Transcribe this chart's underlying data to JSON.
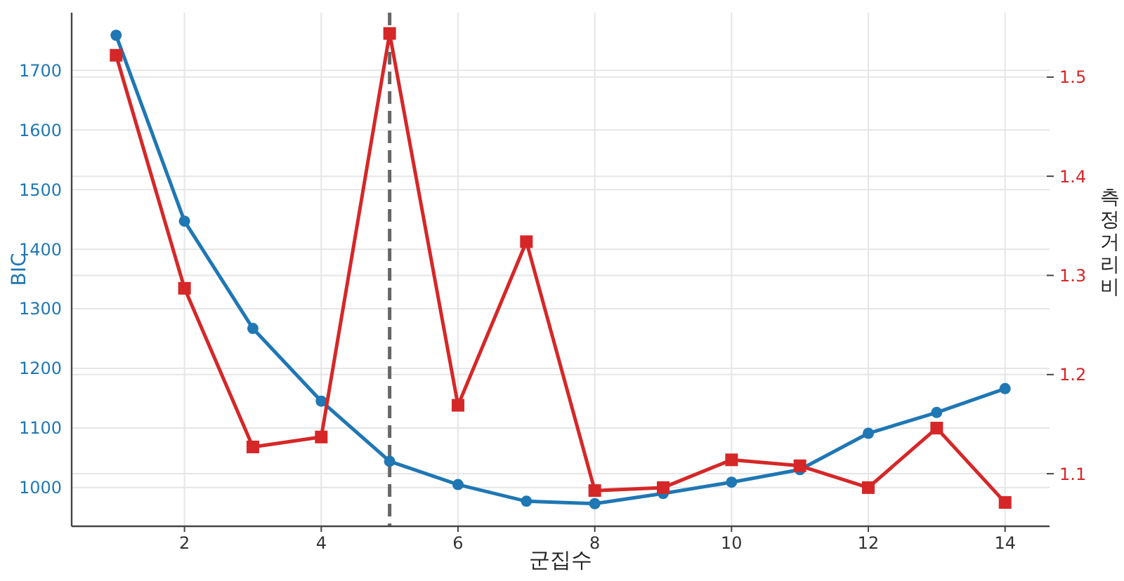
{
  "chart_data": {
    "type": "line",
    "xlabel": "군집수",
    "ylabel": "BIC",
    "y2label": "측정거리비",
    "x": [
      1,
      2,
      3,
      4,
      5,
      6,
      7,
      8,
      9,
      10,
      11,
      12,
      13,
      14
    ],
    "series": [
      {
        "color": "#1f77b4",
        "marker": "circle",
        "values": [
          1759,
          1447,
          1267,
          1145,
          1044,
          1005,
          977,
          973,
          990,
          1009,
          1030,
          1091,
          1126,
          1166
        ]
      },
      {
        "color": "#d62728",
        "marker": "square",
        "axis": "y2",
        "values": [
          1.522,
          1.287,
          1.127,
          1.137,
          1.544,
          1.169,
          1.334,
          1.083,
          1.086,
          1.114,
          1.108,
          1.086,
          1.146,
          1.071
        ]
      }
    ],
    "xlim": [
      0.35,
      14.65
    ],
    "xticks": [
      2,
      4,
      6,
      8,
      10,
      12,
      14
    ],
    "ylim": [
      935,
      1797
    ],
    "yticks": [
      1000,
      1100,
      1200,
      1300,
      1400,
      1500,
      1600,
      1700
    ],
    "y2lim": [
      1.047,
      1.565
    ],
    "y2ticks": [
      1.1,
      1.2,
      1.3,
      1.4,
      1.5
    ],
    "ref_lines": [
      {
        "axis": "x",
        "value": 5,
        "color": "#666666",
        "line_style": "dashed"
      }
    ],
    "grid": true,
    "line_style": "solid"
  }
}
